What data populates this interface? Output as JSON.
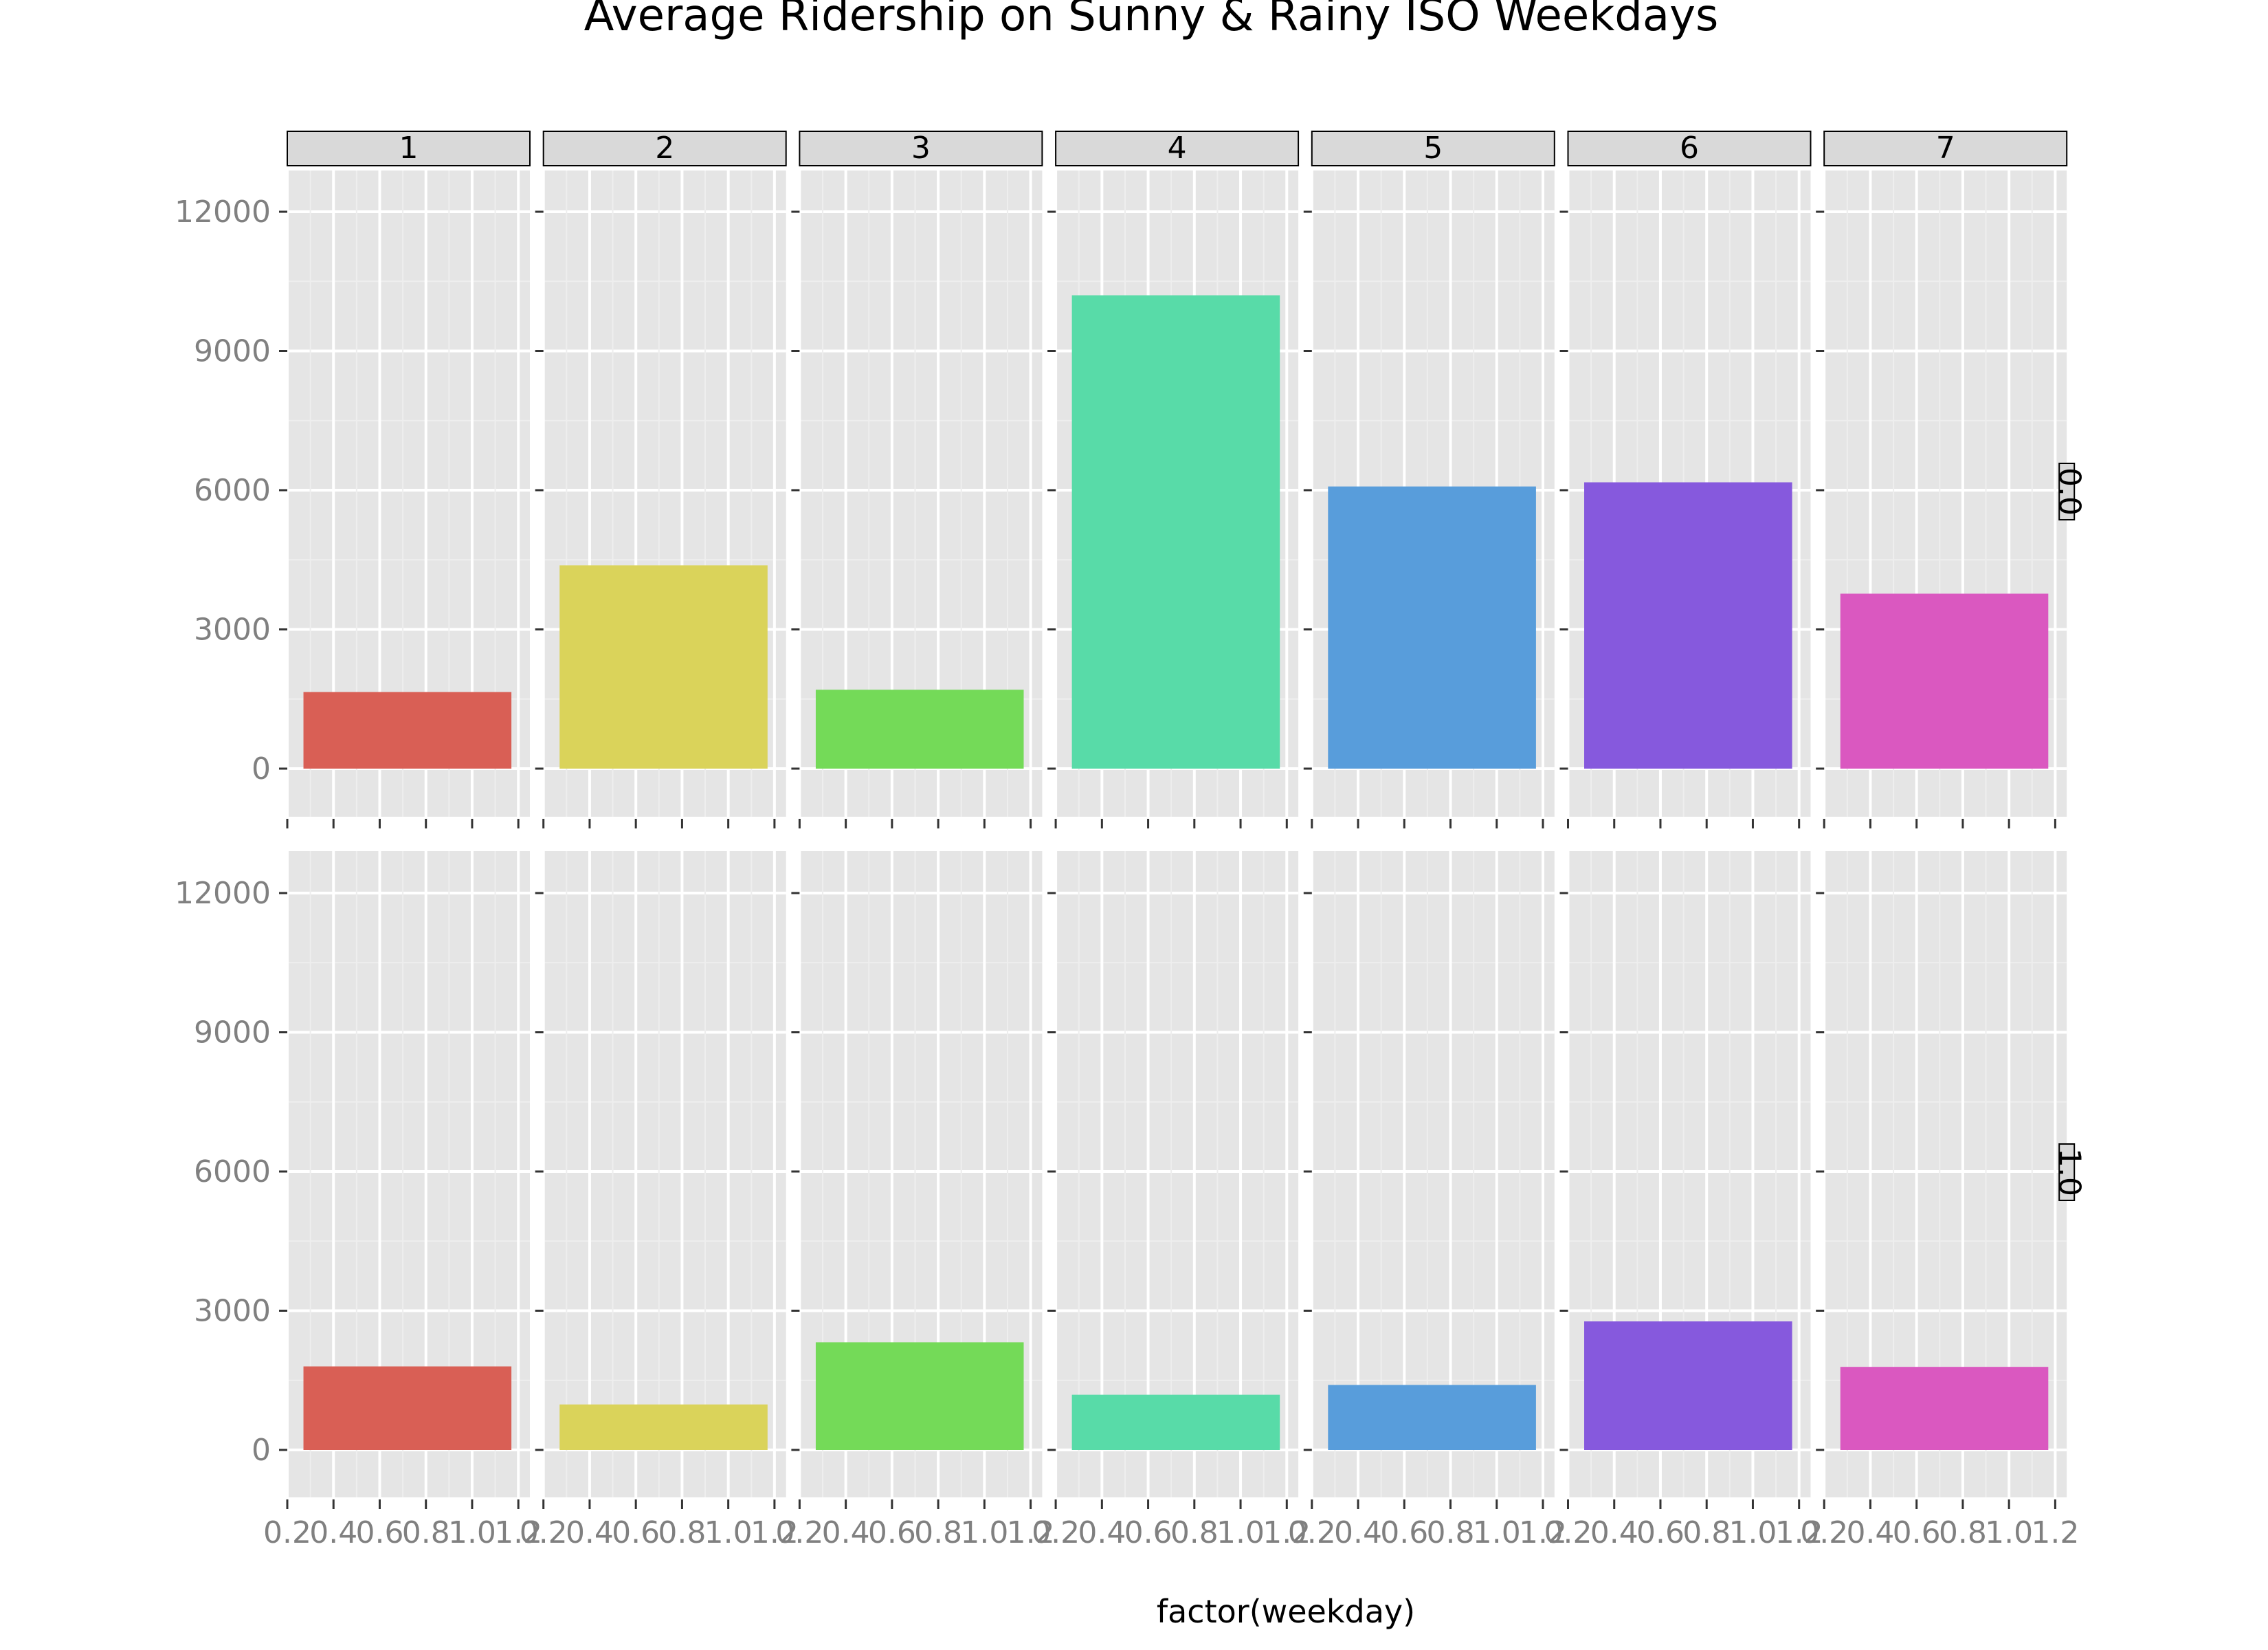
{
  "chart_data": {
    "type": "bar",
    "title": "Average Ridership on Sunny & Rainy ISO Weekdays",
    "xlabel": "factor(weekday)",
    "ylabel": "",
    "ylim": [
      -1000,
      13000
    ],
    "xlim": [
      0.2,
      1.25
    ],
    "y_ticks": [
      "0",
      "3000",
      "6000",
      "9000",
      "12000"
    ],
    "x_ticks": [
      "0.2",
      "0.4",
      "0.6",
      "0.8",
      "1.0",
      "1.2"
    ],
    "facet_columns": [
      "1",
      "2",
      "3",
      "4",
      "5",
      "6",
      "7"
    ],
    "facet_rows": [
      "0.0",
      "1.0"
    ],
    "bar_x_range": [
      0.27,
      1.17
    ],
    "series_colors": [
      "#d95f55",
      "#dad35a",
      "#74da58",
      "#58dba8",
      "#589ddb",
      "#8659dd",
      "#da58c0"
    ],
    "values": {
      "0.0": [
        1650,
        4380,
        1700,
        10200,
        6080,
        6170,
        3770
      ],
      "1.0": [
        1800,
        980,
        2320,
        1190,
        1400,
        2770,
        1790
      ]
    },
    "grid": true,
    "legend": "none"
  }
}
